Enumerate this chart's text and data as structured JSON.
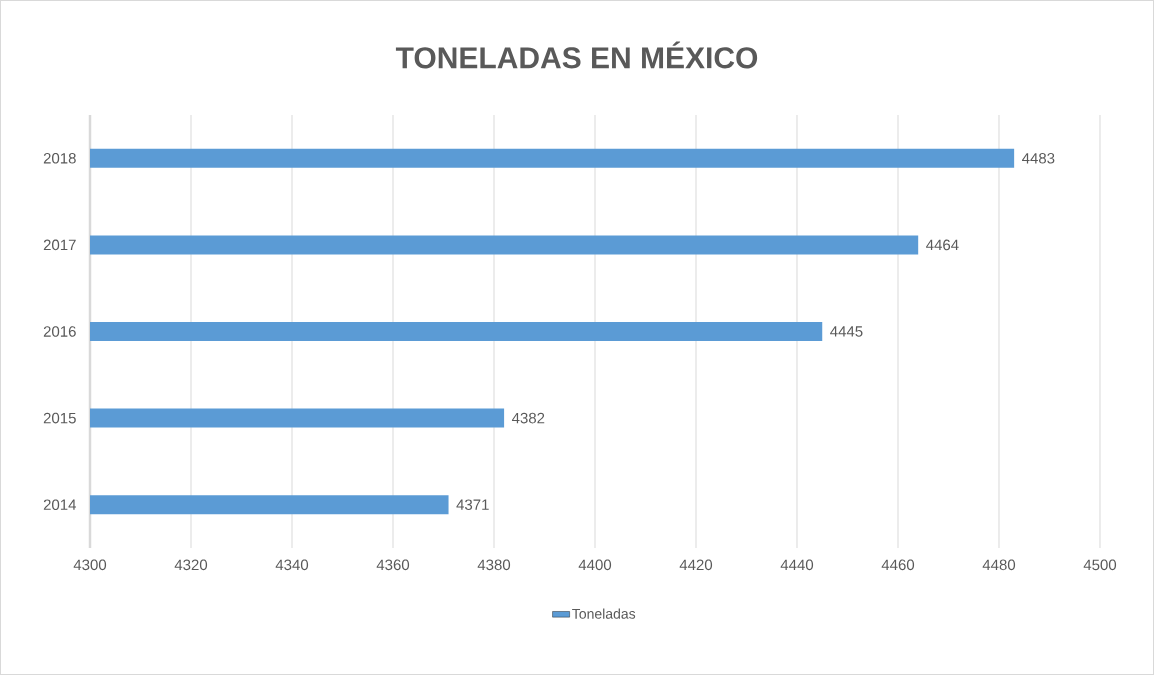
{
  "chart_data": {
    "type": "bar",
    "orientation": "horizontal",
    "title": "TONELADAS EN MÉXICO",
    "categories": [
      "2018",
      "2017",
      "2016",
      "2015",
      "2014"
    ],
    "series": [
      {
        "name": "Toneladas",
        "color": "#5b9bd5",
        "values": [
          4483,
          4464,
          4445,
          4382,
          4371
        ]
      }
    ],
    "xlim": [
      4300,
      4500
    ],
    "xticks": [
      4300,
      4320,
      4340,
      4360,
      4380,
      4400,
      4420,
      4440,
      4460,
      4480,
      4500
    ],
    "grid": "x",
    "legend": "bottom",
    "data_labels": true
  }
}
